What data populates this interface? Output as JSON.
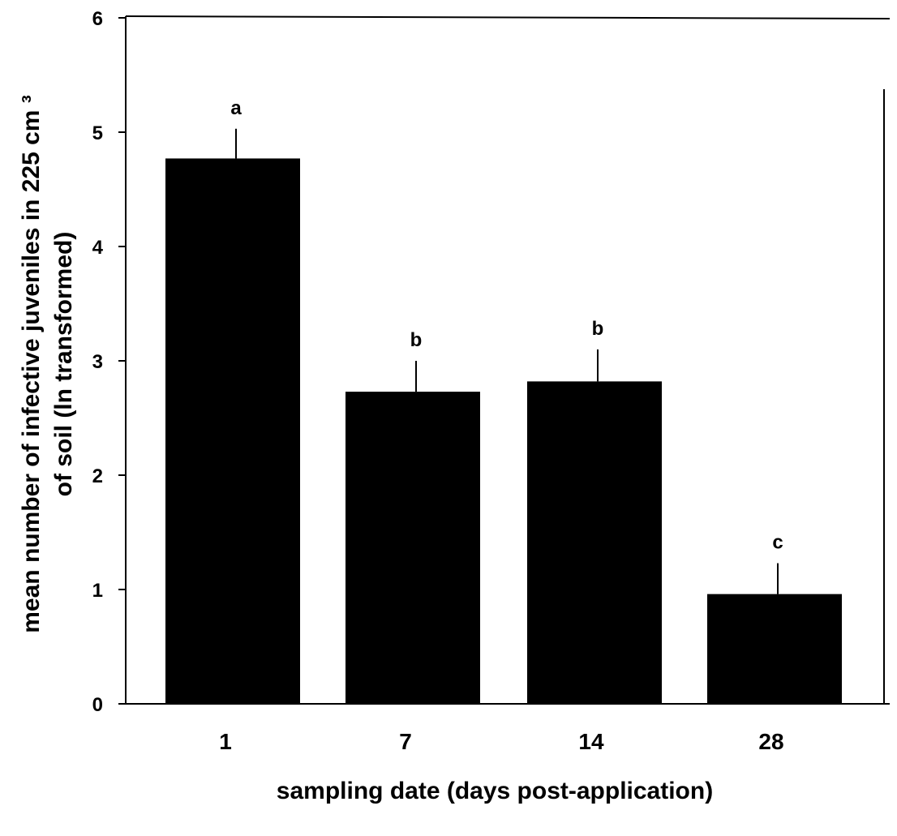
{
  "chart_data": {
    "type": "bar",
    "categories": [
      "1",
      "7",
      "14",
      "28"
    ],
    "values": [
      4.77,
      2.73,
      2.82,
      0.96
    ],
    "error": [
      0.26,
      0.27,
      0.28,
      0.27
    ],
    "significance": [
      "a",
      "b",
      "b",
      "c"
    ],
    "xlabel": "sampling date (days post-application)",
    "ylabel_lines": [
      "mean number of infective juveniles in 225 cm ³",
      "of soil (ln transformed)"
    ],
    "ylim": [
      0,
      6
    ],
    "yticks": [
      0,
      1,
      2,
      3,
      4,
      5,
      6
    ],
    "grid": false,
    "bar_color": "#000000"
  }
}
